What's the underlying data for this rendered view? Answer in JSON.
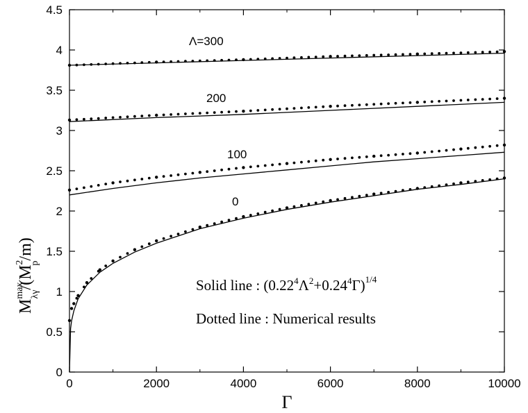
{
  "chart_data": {
    "type": "line",
    "title": "",
    "xlabel": "Γ",
    "ylabel": {
      "main": "M",
      "sup": "max",
      "sub": "λγ",
      "rest1": "/(M",
      "sup2": "2",
      "sub2": "p",
      "rest2": "/m)"
    },
    "xlim": [
      0,
      10000
    ],
    "ylim": [
      0,
      4.5
    ],
    "xticks": [
      0,
      2000,
      4000,
      6000,
      8000,
      10000
    ],
    "yticks": [
      0,
      0.5,
      1,
      1.5,
      2,
      2.5,
      3,
      3.5,
      4,
      4.5
    ],
    "xtick_labels": [
      "0",
      "2000",
      "4000",
      "6000",
      "8000",
      "10000"
    ],
    "ytick_labels": [
      "0",
      "0.5",
      "1",
      "1.5",
      "2",
      "2.5",
      "3",
      "3.5",
      "4",
      "4.5"
    ],
    "grid": false,
    "annotations": {
      "lambda_300": "Λ=300",
      "lambda_200": "200",
      "lambda_100": "100",
      "lambda_0": "0",
      "solid_text": "Solid line : (0.22",
      "solid_sup1": "4",
      "solid_mid1": "Λ",
      "solid_sup2": "2",
      "solid_mid2": "+0.24",
      "solid_sup3": "4",
      "solid_mid3": "Γ)",
      "solid_sup4": "1/4",
      "dotted_text": "Dotted line : Numerical results"
    },
    "series": [
      {
        "style": "solid",
        "lambda": 0,
        "x": [
          0,
          25,
          50,
          100,
          200,
          400,
          700,
          1000,
          1500,
          2000,
          3000,
          4000,
          5000,
          6000,
          7000,
          8000,
          9000,
          10000
        ],
        "y": [
          0,
          0.54,
          0.64,
          0.76,
          0.91,
          1.08,
          1.24,
          1.35,
          1.49,
          1.6,
          1.78,
          1.91,
          2.02,
          2.11,
          2.19,
          2.27,
          2.33,
          2.4
        ]
      },
      {
        "style": "dotted",
        "lambda": 0,
        "x": [
          0,
          50,
          100,
          200,
          400,
          700,
          1000,
          1500,
          2000,
          3000,
          4000,
          5000,
          6000,
          7000,
          8000,
          9000,
          10000
        ],
        "y": [
          0.64,
          0.79,
          0.85,
          0.95,
          1.11,
          1.27,
          1.38,
          1.52,
          1.63,
          1.8,
          1.93,
          2.04,
          2.13,
          2.21,
          2.28,
          2.35,
          2.41
        ]
      },
      {
        "style": "solid",
        "lambda": 100,
        "x": [
          0,
          1000,
          2000,
          3000,
          4000,
          5000,
          6000,
          7000,
          8000,
          9000,
          10000
        ],
        "y": [
          2.2,
          2.28,
          2.35,
          2.41,
          2.46,
          2.51,
          2.56,
          2.61,
          2.65,
          2.69,
          2.73
        ]
      },
      {
        "style": "dotted",
        "lambda": 100,
        "x": [
          0,
          1000,
          2000,
          3000,
          4000,
          5000,
          6000,
          7000,
          8000,
          9000,
          10000
        ],
        "y": [
          2.26,
          2.35,
          2.42,
          2.48,
          2.54,
          2.59,
          2.64,
          2.68,
          2.72,
          2.77,
          2.82
        ]
      },
      {
        "style": "solid",
        "lambda": 200,
        "x": [
          0,
          2000,
          4000,
          6000,
          8000,
          10000
        ],
        "y": [
          3.11,
          3.16,
          3.2,
          3.25,
          3.3,
          3.35
        ]
      },
      {
        "style": "dotted",
        "lambda": 200,
        "x": [
          0,
          2000,
          4000,
          6000,
          8000,
          10000
        ],
        "y": [
          3.13,
          3.19,
          3.24,
          3.3,
          3.35,
          3.4
        ]
      },
      {
        "style": "solid",
        "lambda": 300,
        "x": [
          0,
          2000,
          4000,
          6000,
          8000,
          10000
        ],
        "y": [
          3.81,
          3.84,
          3.87,
          3.9,
          3.93,
          3.96
        ]
      },
      {
        "style": "dotted",
        "lambda": 300,
        "x": [
          0,
          2000,
          4000,
          6000,
          8000,
          10000
        ],
        "y": [
          3.81,
          3.85,
          3.88,
          3.92,
          3.95,
          3.98
        ]
      }
    ]
  }
}
